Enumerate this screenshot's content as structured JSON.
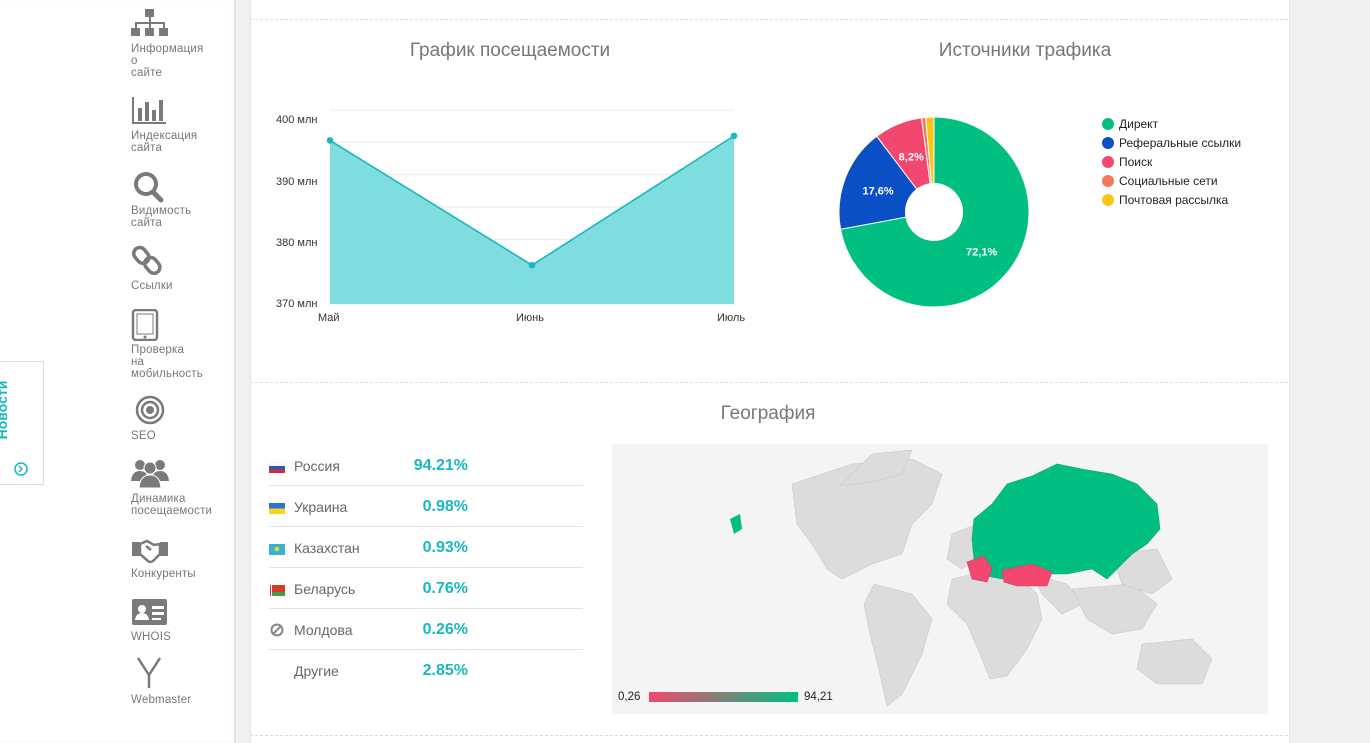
{
  "sidebar": {
    "items": [
      {
        "label": "Информация\nо\nсайте",
        "icon": "sitemap-icon"
      },
      {
        "label": "Индексация\nсайта",
        "icon": "bar-chart-icon"
      },
      {
        "label": "Видимость\nсайта",
        "icon": "search-icon"
      },
      {
        "label": "Ссылки",
        "icon": "link-icon"
      },
      {
        "label": "Проверка\nна\nмобильность",
        "icon": "tablet-icon"
      },
      {
        "label": "SEO",
        "icon": "target-icon"
      },
      {
        "label": "Динамика\nпосещаемости",
        "icon": "users-icon"
      },
      {
        "label": "Конкуренты",
        "icon": "handshake-icon"
      },
      {
        "label": "WHOIS",
        "icon": "id-card-icon"
      },
      {
        "label": "Webmaster",
        "icon": "yandex-icon"
      }
    ]
  },
  "news_tab": {
    "label": "Новости",
    "icon": "chevron-circle-icon"
  },
  "traffic": {
    "title": "График посещаемости",
    "chart_data": {
      "type": "area",
      "categories": [
        "Май",
        "Июнь",
        "Июль"
      ],
      "values": [
        395.3,
        376,
        396
      ],
      "ylim": [
        370,
        400
      ],
      "yticks": [
        "400 млн",
        "390 млн",
        "380 млн",
        "370 млн"
      ],
      "color": "#19b7bf",
      "fill": "#7fdde0",
      "grid": true
    }
  },
  "sources": {
    "title": "Источники трафика",
    "chart_data": {
      "type": "pie",
      "categories": [
        "Директ",
        "Реферальные ссылки",
        "Поиск",
        "Социальные сети",
        "Почтовая рассылка"
      ],
      "values": [
        72.1,
        17.6,
        8.2,
        0.7,
        1.4
      ],
      "labels": [
        "72,1%",
        "17,6%",
        "8,2%",
        "",
        ""
      ],
      "colors": [
        "#00bf80",
        "#0b4fc4",
        "#f2486f",
        "#f4785a",
        "#fcc419"
      ],
      "legend": "right",
      "donut": true
    }
  },
  "geo": {
    "title": "География",
    "rows": [
      {
        "country": "Россия",
        "percent": "94.21%",
        "flag": "russia-flag-icon"
      },
      {
        "country": "Украина",
        "percent": "0.98%",
        "flag": "ukraine-flag-icon"
      },
      {
        "country": "Казахстан",
        "percent": "0.93%",
        "flag": "kazakhstan-flag-icon"
      },
      {
        "country": "Беларусь",
        "percent": "0.76%",
        "flag": "belarus-flag-icon"
      },
      {
        "country": "Молдова",
        "percent": "0.26%",
        "flag": "no-flag-icon"
      },
      {
        "country": "Другие",
        "percent": "2.85%",
        "flag": ""
      }
    ],
    "scale_min": "0,26",
    "scale_max": "94,21",
    "scale_colors": [
      "#f2486f",
      "#00bf80"
    ]
  }
}
